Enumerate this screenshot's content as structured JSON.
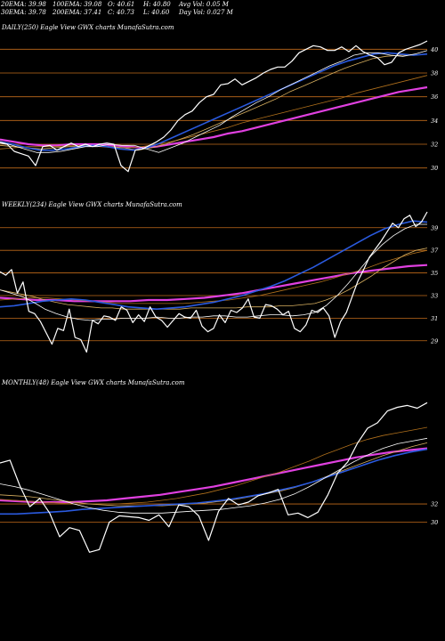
{
  "header": {
    "row1": [
      "20EMA: 39.98",
      "100EMA: 39.08",
      "O: 40.61",
      "H: 40.80",
      "Avg Vol: 0.05 M"
    ],
    "row2": [
      "30EMA: 39.78",
      "200EMA: 37.41",
      "C: 40.73",
      "L: 40.60",
      "Day Vol: 0.027 M"
    ]
  },
  "colors": {
    "background": "#000000",
    "price": "#ffffff",
    "ema_fast": "#ffffff",
    "ema_mid": "#d8b060",
    "ema_slow": "#b0701c",
    "ema_blue": "#2a5adf",
    "ema_200": "#e040e0",
    "gridline": "#c06a1a"
  },
  "chart_data": [
    {
      "type": "line",
      "title": "DAILY(250) Eagle  View  GWX  charts MunafaSutra.com",
      "yticks": [
        "40",
        "38",
        "36",
        "34",
        "32",
        "30"
      ],
      "tick_values": [
        40,
        38,
        36,
        34,
        32,
        30
      ],
      "ylim": [
        29.3,
        41.3
      ],
      "n_points": 250,
      "series": [
        {
          "role": "price",
          "values": [
            32.1,
            32.0,
            31.4,
            31.2,
            31.0,
            30.2,
            31.8,
            31.9,
            31.5,
            31.8,
            32.1,
            31.8,
            32.0,
            31.8,
            32.0,
            32.1,
            32.0,
            30.2,
            29.7,
            31.5,
            31.6,
            31.9,
            32.2,
            32.6,
            33.2,
            34.0,
            34.5,
            34.8,
            35.5,
            36.0,
            36.2,
            37.0,
            37.1,
            37.5,
            37.0,
            37.3,
            37.6,
            38.0,
            38.3,
            38.5,
            38.5,
            39.0,
            39.7,
            40.0,
            40.3,
            40.2,
            39.9,
            39.9,
            40.2,
            39.8,
            40.3,
            39.8,
            39.5,
            39.3,
            38.7,
            38.9,
            39.7,
            40.0,
            40.2,
            40.4,
            40.7
          ]
        },
        {
          "role": "ema_fast",
          "values": [
            32.2,
            31.9,
            31.6,
            31.3,
            31.3,
            31.4,
            31.6,
            31.8,
            31.8,
            32.0,
            31.9,
            31.9,
            31.6,
            31.3,
            31.7,
            32.1,
            32.6,
            33.1,
            33.6,
            34.3,
            34.9,
            35.5,
            36.0,
            36.6,
            37.1,
            37.6,
            38.1,
            38.6,
            39.0,
            39.5,
            39.7,
            39.7,
            39.5,
            39.4,
            39.6,
            39.9
          ]
        },
        {
          "role": "ema_mid",
          "values": [
            31.9,
            31.8,
            31.7,
            31.6,
            31.7,
            31.8,
            31.8,
            31.9,
            31.8,
            31.7,
            31.5,
            31.7,
            32.0,
            32.4,
            32.8,
            33.3,
            33.8,
            34.3,
            34.8,
            35.3,
            35.8,
            36.4,
            36.9,
            37.4,
            37.9,
            38.4,
            38.8,
            39.2,
            39.4,
            39.5,
            39.5,
            39.6
          ]
        },
        {
          "role": "ema_slow",
          "values": [
            31.6,
            31.7,
            31.8,
            31.8,
            31.8,
            31.9,
            31.9,
            31.8,
            31.7,
            31.7,
            31.8,
            32.0,
            32.2,
            32.5,
            32.8,
            33.1,
            33.4,
            33.8,
            34.1,
            34.4,
            34.7,
            35.0,
            35.3,
            35.6,
            35.9,
            36.3,
            36.6,
            36.9,
            37.2,
            37.5,
            37.8
          ]
        },
        {
          "role": "ema_blue",
          "values": [
            32.2,
            32.0,
            31.7,
            31.5,
            31.5,
            31.6,
            31.8,
            31.9,
            31.8,
            31.6,
            31.5,
            31.7,
            32.1,
            32.6,
            33.1,
            33.6,
            34.1,
            34.6,
            35.1,
            35.6,
            36.1,
            36.6,
            37.1,
            37.6,
            38.1,
            38.6,
            39.0,
            39.3,
            39.6,
            39.7,
            39.6,
            39.5,
            39.6
          ]
        },
        {
          "role": "ema_200",
          "values": [
            32.4,
            32.2,
            32.0,
            31.9,
            31.9,
            32.0,
            32.0,
            32.0,
            31.9,
            31.8,
            31.7,
            31.8,
            32.0,
            32.2,
            32.4,
            32.6,
            32.9,
            33.1,
            33.4,
            33.7,
            34.0,
            34.3,
            34.6,
            34.9,
            35.2,
            35.5,
            35.8,
            36.1,
            36.4,
            36.6,
            36.8
          ]
        }
      ]
    },
    {
      "type": "line",
      "title": "WEEKLY(234) Eagle  View  GWX  charts MunafaSutra.com",
      "yticks": [
        "39",
        "37",
        "35",
        "33",
        "31",
        "29"
      ],
      "tick_values": [
        39,
        37,
        35,
        33,
        31,
        29
      ],
      "ylim": [
        27.8,
        40.4
      ],
      "n_points": 234,
      "series": [
        {
          "role": "price",
          "values": [
            35.1,
            34.8,
            35.3,
            33.2,
            34.2,
            31.6,
            31.4,
            30.7,
            29.7,
            28.7,
            30.1,
            29.9,
            31.8,
            29.3,
            29.1,
            28.0,
            30.8,
            30.5,
            31.2,
            31.1,
            30.8,
            32.0,
            31.7,
            30.6,
            31.3,
            30.7,
            32.0,
            31.1,
            30.8,
            30.2,
            30.8,
            31.4,
            31.1,
            31.0,
            31.7,
            30.3,
            29.8,
            30.1,
            31.3,
            30.6,
            31.7,
            31.5,
            31.9,
            32.7,
            31.1,
            31.0,
            32.2,
            32.1,
            31.8,
            31.3,
            31.6,
            30.1,
            29.8,
            30.4,
            31.7,
            31.5,
            31.9,
            31.2,
            29.3,
            30.7,
            31.5,
            32.9,
            34.3,
            35.3,
            36.4,
            37.1,
            37.8,
            38.6,
            39.4,
            39.0,
            39.8,
            40.1,
            39.1,
            39.5,
            40.4
          ]
        },
        {
          "role": "ema_fast",
          "values": [
            33.5,
            33.2,
            32.9,
            32.4,
            31.8,
            31.4,
            31.1,
            30.9,
            30.8,
            30.9,
            30.9,
            31.0,
            31.0,
            31.0,
            31.1,
            31.0,
            31.0,
            31.1,
            31.1,
            31.2,
            31.2,
            31.1,
            31.1,
            31.2,
            31.3,
            31.3,
            31.2,
            31.3,
            31.5,
            32.1,
            33.0,
            34.1,
            35.3,
            36.5,
            37.5,
            38.3,
            38.9,
            39.3,
            39.3
          ]
        },
        {
          "role": "ema_mid",
          "values": [
            33.5,
            33.3,
            33.1,
            32.9,
            32.6,
            32.4,
            32.2,
            32.1,
            32.0,
            31.9,
            31.9,
            31.8,
            31.8,
            31.8,
            31.8,
            31.8,
            31.8,
            31.9,
            31.9,
            31.9,
            31.9,
            31.9,
            32.0,
            32.0,
            32.0,
            32.1,
            32.1,
            32.2,
            32.3,
            32.6,
            33.0,
            33.5,
            34.1,
            34.7,
            35.4,
            36.0,
            36.6,
            37.0,
            37.2
          ]
        },
        {
          "role": "ema_slow",
          "values": [
            32.6,
            32.7,
            32.8,
            32.8,
            32.7,
            32.6,
            32.5,
            32.4,
            32.3,
            32.3,
            32.3,
            32.3,
            32.3,
            32.4,
            32.5,
            32.6,
            32.8,
            33.0,
            33.3,
            33.6,
            33.9,
            34.2,
            34.6,
            35.0,
            35.4,
            35.9,
            36.3,
            36.7,
            37.0
          ]
        },
        {
          "role": "ema_blue",
          "values": [
            32.0,
            32.1,
            32.3,
            32.5,
            32.6,
            32.7,
            32.6,
            32.4,
            32.2,
            32.0,
            31.9,
            31.8,
            31.9,
            32.0,
            32.2,
            32.4,
            32.7,
            33.0,
            33.4,
            33.8,
            34.3,
            34.9,
            35.5,
            36.2,
            36.9,
            37.6,
            38.3,
            38.9,
            39.3,
            39.6,
            39.5
          ]
        },
        {
          "role": "ema_200",
          "values": [
            32.8,
            32.7,
            32.6,
            32.6,
            32.5,
            32.5,
            32.5,
            32.5,
            32.6,
            32.6,
            32.7,
            32.8,
            33.0,
            33.2,
            33.5,
            33.8,
            34.1,
            34.4,
            34.7,
            35.0,
            35.2,
            35.4,
            35.6,
            35.7
          ]
        }
      ]
    },
    {
      "type": "line",
      "title": "MONTHLY(48) Eagle  View  GWX  charts MunafaSutra.com",
      "yticks": [
        "32",
        "30"
      ],
      "tick_values": [
        32,
        30
      ],
      "ylim": [
        24.0,
        44.5
      ],
      "n_points": 48,
      "series": [
        {
          "role": "price",
          "values": [
            36.5,
            36.8,
            34.0,
            31.7,
            32.6,
            31.0,
            28.4,
            29.4,
            29.1,
            26.7,
            27.0,
            30.0,
            30.7,
            30.6,
            30.5,
            30.2,
            30.8,
            29.5,
            31.9,
            31.7,
            30.7,
            28.0,
            31.2,
            32.6,
            31.9,
            32.2,
            32.9,
            33.2,
            33.6,
            30.8,
            31.0,
            30.5,
            31.1,
            33.0,
            35.4,
            36.6,
            38.7,
            40.3,
            40.9,
            42.2,
            42.6,
            42.8,
            42.5,
            43.1
          ]
        },
        {
          "role": "ema_fast",
          "values": [
            34.2,
            33.9,
            33.5,
            33.0,
            32.5,
            32.0,
            31.6,
            31.3,
            31.1,
            31.0,
            31.0,
            31.0,
            31.1,
            31.2,
            31.3,
            31.4,
            31.6,
            31.8,
            32.1,
            32.5,
            33.1,
            33.9,
            34.8,
            35.7,
            36.6,
            37.4,
            38.1,
            38.6,
            38.9,
            39.2
          ]
        },
        {
          "role": "ema_mid",
          "values": [
            33.0,
            32.9,
            32.8,
            32.6,
            32.4,
            32.2,
            32.0,
            31.9,
            31.8,
            31.8,
            31.8,
            31.8,
            31.9,
            32.0,
            32.1,
            32.3,
            32.5,
            32.8,
            33.1,
            33.4,
            33.8,
            34.3,
            34.9,
            35.5,
            36.1,
            36.7,
            37.3,
            37.8,
            38.3,
            38.7
          ]
        },
        {
          "role": "ema_slow",
          "values": [
            32.5,
            32.4,
            32.3,
            32.2,
            32.1,
            32.0,
            32.0,
            32.0,
            32.0,
            32.1,
            32.2,
            32.4,
            32.6,
            32.9,
            33.2,
            33.6,
            34.0,
            34.5,
            35.0,
            35.5,
            36.1,
            36.7,
            37.4,
            38.0,
            38.6,
            39.1,
            39.5,
            39.8,
            40.1,
            40.4
          ]
        },
        {
          "role": "ema_blue",
          "values": [
            30.9,
            30.9,
            31.0,
            31.1,
            31.2,
            31.4,
            31.5,
            31.6,
            31.7,
            31.8,
            31.9,
            32.0,
            32.1,
            32.3,
            32.5,
            32.8,
            33.1,
            33.5,
            33.9,
            34.4,
            35.0,
            35.6,
            36.2,
            36.8,
            37.3,
            37.7,
            38.0
          ]
        },
        {
          "role": "ema_200",
          "values": [
            32.4,
            32.3,
            32.2,
            32.2,
            32.2,
            32.3,
            32.4,
            32.6,
            32.8,
            33.0,
            33.3,
            33.6,
            33.9,
            34.3,
            34.7,
            35.1,
            35.5,
            35.9,
            36.3,
            36.7,
            37.1,
            37.4,
            37.7,
            37.9,
            38.1
          ]
        }
      ]
    }
  ]
}
